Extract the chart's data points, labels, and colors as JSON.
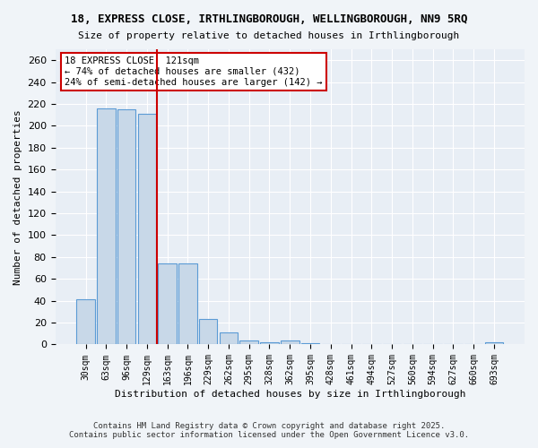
{
  "title1": "18, EXPRESS CLOSE, IRTHLINGBOROUGH, WELLINGBOROUGH, NN9 5RQ",
  "title2": "Size of property relative to detached houses in Irthlingborough",
  "xlabel": "Distribution of detached houses by size in Irthlingborough",
  "ylabel": "Number of detached properties",
  "categories": [
    "30sqm",
    "63sqm",
    "96sqm",
    "129sqm",
    "163sqm",
    "196sqm",
    "229sqm",
    "262sqm",
    "295sqm",
    "328sqm",
    "362sqm",
    "395sqm",
    "428sqm",
    "461sqm",
    "494sqm",
    "527sqm",
    "560sqm",
    "594sqm",
    "627sqm",
    "660sqm",
    "693sqm"
  ],
  "values": [
    41,
    216,
    215,
    211,
    74,
    74,
    23,
    11,
    4,
    2,
    4,
    1,
    0,
    0,
    0,
    0,
    0,
    0,
    0,
    0,
    2
  ],
  "bar_color": "#c8d8e8",
  "bar_edge_color": "#5b9bd5",
  "vline_x": 3.5,
  "vline_color": "#cc0000",
  "annotation_text": "18 EXPRESS CLOSE: 121sqm\n← 74% of detached houses are smaller (432)\n24% of semi-detached houses are larger (142) →",
  "annotation_box_color": "#ffffff",
  "annotation_box_edge": "#cc0000",
  "ylim": [
    0,
    270
  ],
  "yticks": [
    0,
    20,
    40,
    60,
    80,
    100,
    120,
    140,
    160,
    180,
    200,
    220,
    240,
    260
  ],
  "background_color": "#e8eef5",
  "grid_color": "#ffffff",
  "footer1": "Contains HM Land Registry data © Crown copyright and database right 2025.",
  "footer2": "Contains public sector information licensed under the Open Government Licence v3.0."
}
